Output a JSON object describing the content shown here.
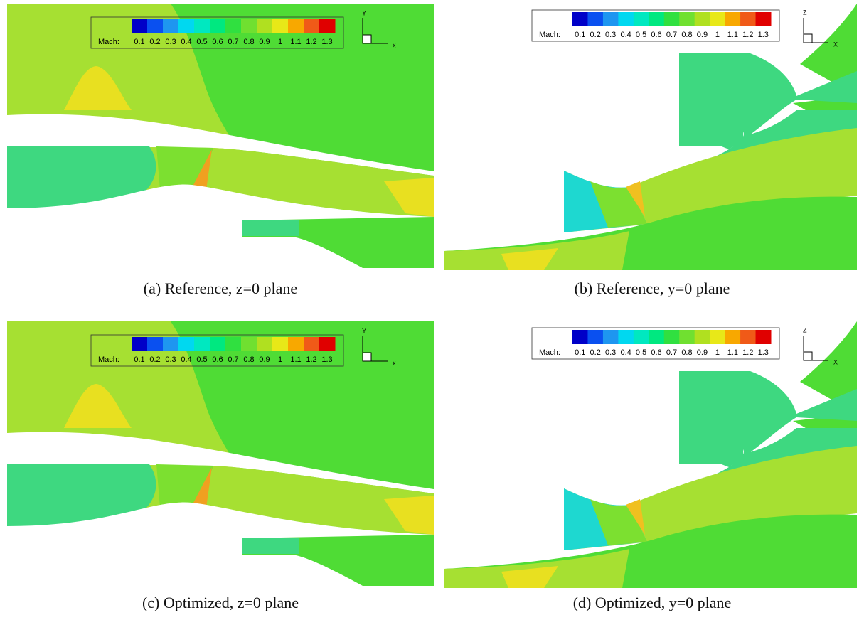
{
  "panels": [
    {
      "caption": "(a)  Reference, z=0 plane",
      "axes": [
        "Y",
        "x"
      ],
      "legend": {
        "label": "Mach:",
        "ticks": [
          "0.1",
          "0.2",
          "0.3",
          "0.4",
          "0.5",
          "0.6",
          "0.7",
          "0.8",
          "0.9",
          "1",
          "1.1",
          "1.2",
          "1.3"
        ]
      }
    },
    {
      "caption": "(b)  Reference, y=0 plane",
      "axes": [
        "Z",
        "X"
      ],
      "legend": {
        "label": "Mach:",
        "ticks": [
          "0.1",
          "0.2",
          "0.3",
          "0.4",
          "0.5",
          "0.6",
          "0.7",
          "0.8",
          "0.9",
          "1",
          "1.1",
          "1.2",
          "1.3"
        ]
      }
    },
    {
      "caption": "(c)  Optimized, z=0 plane",
      "axes": [
        "Y",
        "x"
      ],
      "legend": {
        "label": "Mach:",
        "ticks": [
          "0.1",
          "0.2",
          "0.3",
          "0.4",
          "0.5",
          "0.6",
          "0.7",
          "0.8",
          "0.9",
          "1",
          "1.1",
          "1.2",
          "1.3"
        ]
      }
    },
    {
      "caption": "(d)  Optimized, y=0 plane",
      "axes": [
        "Z",
        "X"
      ],
      "legend": {
        "label": "Mach:",
        "ticks": [
          "0.1",
          "0.2",
          "0.3",
          "0.4",
          "0.5",
          "0.6",
          "0.7",
          "0.8",
          "0.9",
          "1",
          "1.1",
          "1.2",
          "1.3"
        ]
      }
    }
  ],
  "colors": [
    "#0000c8",
    "#0a50f0",
    "#1e96f0",
    "#00d8f0",
    "#00e8c0",
    "#00e880",
    "#30e040",
    "#70e030",
    "#b0e020",
    "#e8e818",
    "#f8a800",
    "#f05a18",
    "#e00000"
  ]
}
